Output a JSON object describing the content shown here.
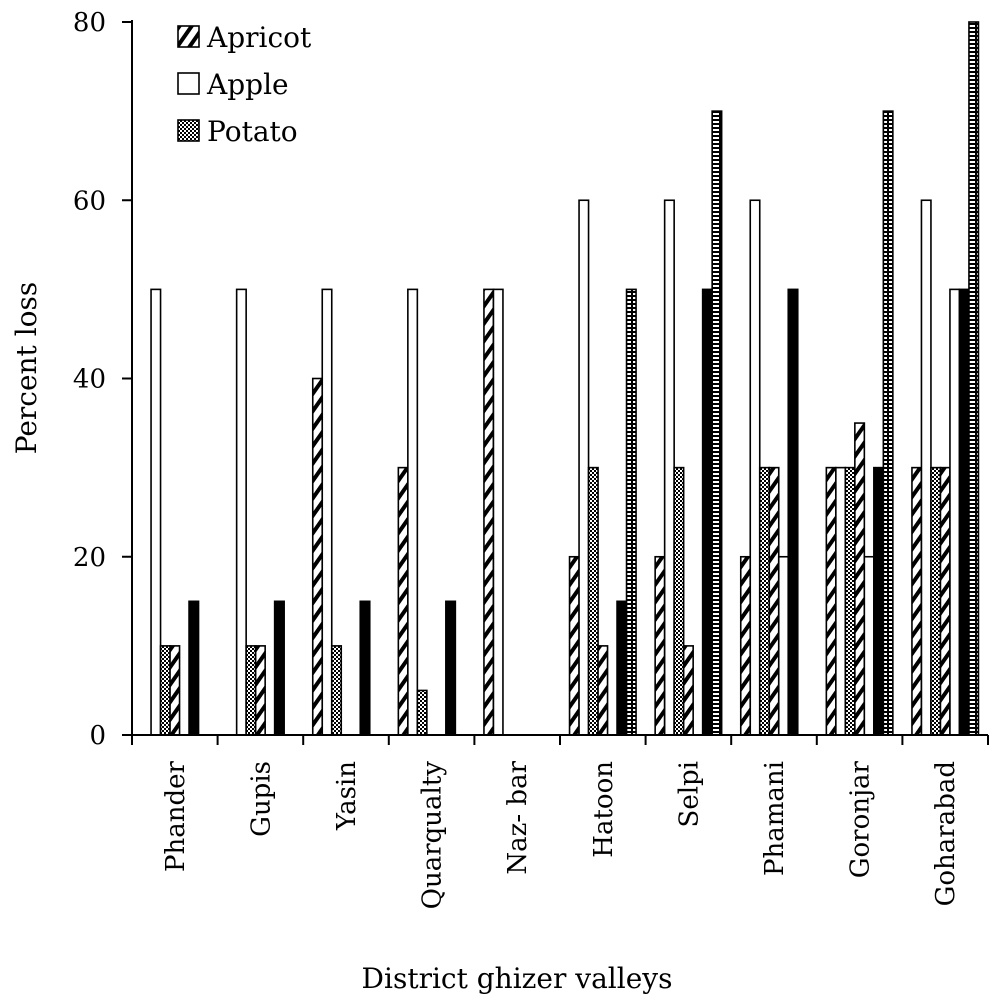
{
  "chart_data": {
    "type": "bar",
    "title": "",
    "xlabel": "District ghizer valleys",
    "ylabel": "Percent loss",
    "ylim": [
      0,
      80
    ],
    "yticks": [
      0,
      20,
      40,
      60,
      80
    ],
    "grid": false,
    "legend_position": "top-left",
    "categories": [
      "Phander",
      "Gupis",
      "Yasin",
      "Quarqualty",
      "Naz- bar",
      "Hatoon",
      "Selpi",
      "Phamani",
      "Goronjar",
      "Goharabad"
    ],
    "series": [
      {
        "name": "Apricot",
        "pattern": "diagonal",
        "legend": true,
        "values": [
          0,
          0,
          40,
          30,
          50,
          20,
          20,
          20,
          30,
          30
        ]
      },
      {
        "name": "Apple",
        "pattern": "white",
        "legend": true,
        "values": [
          50,
          50,
          50,
          50,
          50,
          60,
          60,
          60,
          30,
          60
        ]
      },
      {
        "name": "Potato",
        "pattern": "checker",
        "legend": true,
        "values": [
          10,
          10,
          10,
          5,
          0,
          30,
          30,
          30,
          30,
          30
        ]
      },
      {
        "name": "",
        "pattern": "diagonal",
        "legend": false,
        "values": [
          10,
          10,
          0,
          0,
          0,
          10,
          10,
          30,
          35,
          30
        ]
      },
      {
        "name": "",
        "pattern": "white",
        "legend": false,
        "values": [
          0,
          0,
          0,
          0,
          0,
          0,
          0,
          20,
          20,
          50
        ]
      },
      {
        "name": "",
        "pattern": "black",
        "legend": false,
        "values": [
          15,
          15,
          15,
          15,
          0,
          15,
          50,
          50,
          30,
          50
        ]
      },
      {
        "name": "",
        "pattern": "brick",
        "legend": false,
        "values": [
          0,
          0,
          0,
          0,
          0,
          50,
          70,
          0,
          70,
          80
        ]
      }
    ]
  }
}
